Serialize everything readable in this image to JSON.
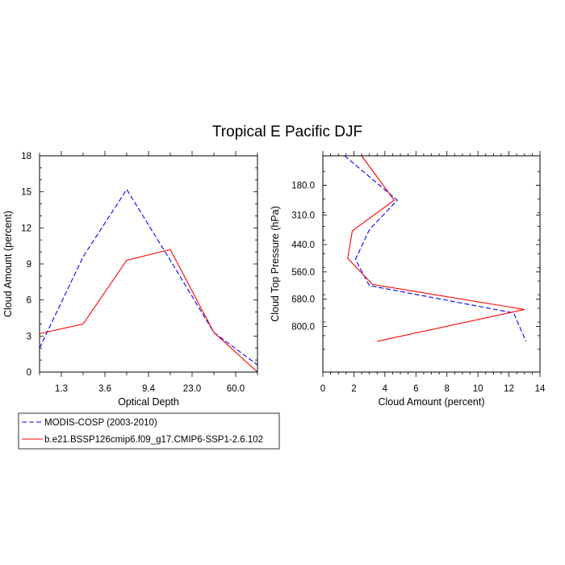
{
  "title": "Tropical E Pacific DJF",
  "legend": {
    "placement": "bottom-left",
    "entries": [
      "MODIS-COSP (2003-2010)",
      "b.e21.BSSP126cmip6.f09_g17.CMIP6-SSP1-2.6.102"
    ]
  },
  "colors": {
    "obs": "#0000ff",
    "model": "#ff0000",
    "axes": "#000000"
  },
  "chart_data": [
    {
      "type": "line",
      "xlabel": "Optical Depth",
      "ylabel": "Cloud Amount (percent)",
      "categories": [
        "",
        "1.3",
        "",
        "3.6",
        "",
        "9.4",
        "",
        "23.0",
        "",
        "60.0",
        ""
      ],
      "x": [
        0,
        1,
        2,
        3,
        4,
        5,
        6,
        7,
        8,
        9,
        10
      ],
      "xlim": [
        0,
        10
      ],
      "ylim": [
        0,
        18
      ],
      "yticks": [
        0,
        3,
        6,
        9,
        12,
        15,
        18
      ],
      "series": [
        {
          "name": "MODIS-COSP (2003-2010)",
          "style": "dashed",
          "x": [
            0,
            2,
            4,
            6,
            8,
            10
          ],
          "values": [
            2.0,
            9.6,
            15.2,
            9.3,
            3.3,
            0.6
          ]
        },
        {
          "name": "b.e21.BSSP126cmip6.f09_g17.CMIP6-SSP1-2.6.102",
          "style": "solid",
          "x": [
            0,
            2,
            4,
            6,
            8,
            10
          ],
          "values": [
            3.2,
            4.0,
            9.3,
            10.2,
            3.3,
            0.0
          ]
        }
      ]
    },
    {
      "type": "line",
      "xlabel": "Cloud Amount (percent)",
      "ylabel": "Cloud Top Pressure (hPa)",
      "xlim": [
        0,
        14
      ],
      "xticks": [
        0,
        2,
        4,
        6,
        8,
        10,
        12,
        14
      ],
      "ylim": [
        50,
        1000
      ],
      "yticks": [
        180.0,
        310.0,
        440.0,
        560.0,
        680.0,
        800.0
      ],
      "ytick_labels": [
        "180.0",
        "310.0",
        "440.0",
        "560.0",
        "680.0",
        "800.0"
      ],
      "y_reversed": true,
      "series": [
        {
          "name": "MODIS-COSP (2003-2010)",
          "style": "dashed",
          "x": [
            1.4,
            4.8,
            3.0,
            2.1,
            3.0,
            12.3,
            13.1
          ],
          "y": [
            50,
            245,
            375,
            505,
            620,
            740,
            865
          ]
        },
        {
          "name": "b.e21.BSSP126cmip6.f09_g17.CMIP6-SSP1-2.6.102",
          "style": "solid",
          "x": [
            2.5,
            4.6,
            1.9,
            1.6,
            3.2,
            13.0,
            3.5
          ],
          "y": [
            50,
            245,
            380,
            500,
            615,
            725,
            865
          ]
        }
      ]
    }
  ]
}
